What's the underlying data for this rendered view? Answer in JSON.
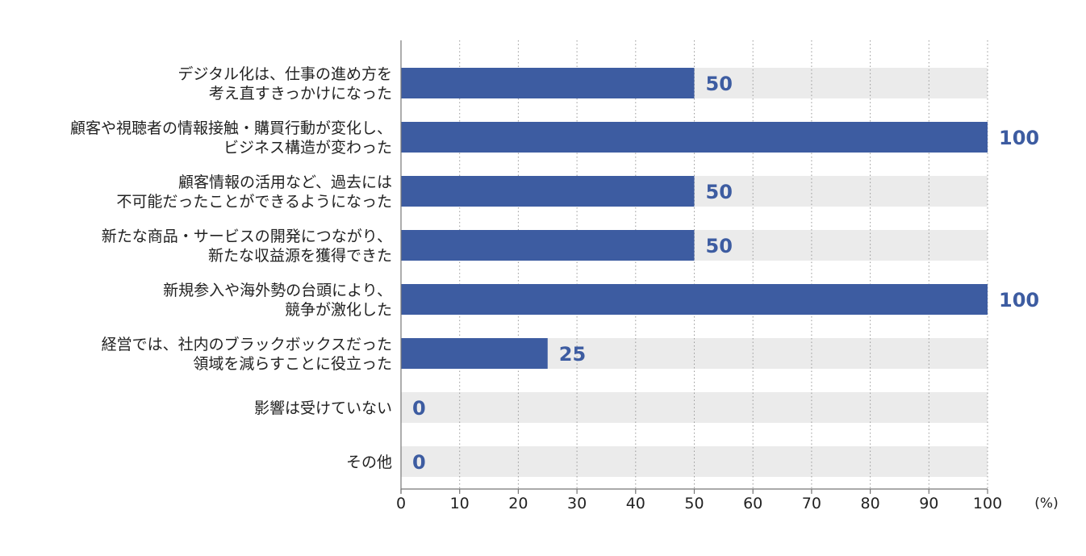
{
  "colors": {
    "bar": "#3d5ca1",
    "track": "#ebebeb",
    "value_label": "#3d5ca1",
    "text": "#222222",
    "axis": "#777777",
    "grid": "#9a9a9a"
  },
  "chart_data": {
    "type": "bar",
    "orientation": "horizontal",
    "unit_label": "(%)",
    "xlim": [
      0,
      100
    ],
    "x_ticks": [
      "0",
      "10",
      "20",
      "30",
      "40",
      "50",
      "60",
      "70",
      "80",
      "90",
      "100"
    ],
    "grid": "vertical dotted",
    "categories": [
      [
        "デジタル化は、仕事の進め方を",
        "考え直すきっかけになった"
      ],
      [
        "顧客や視聴者の情報接触・購買行動が変化し、",
        "ビジネス構造が変わった"
      ],
      [
        "顧客情報の活用など、過去には",
        "不可能だったことができるようになった"
      ],
      [
        "新たな商品・サービスの開発につながり、",
        "新たな収益源を獲得できた"
      ],
      [
        "新規参入や海外勢の台頭により、",
        "競争が激化した"
      ],
      [
        "経営では、社内のブラックボックスだった",
        "領域を減らすことに役立った"
      ],
      [
        "影響は受けていない"
      ],
      [
        "その他"
      ]
    ],
    "values": [
      50,
      100,
      50,
      50,
      100,
      25,
      0,
      0
    ],
    "value_labels": [
      "50",
      "100",
      "50",
      "50",
      "100",
      "25",
      "0",
      "0"
    ]
  }
}
